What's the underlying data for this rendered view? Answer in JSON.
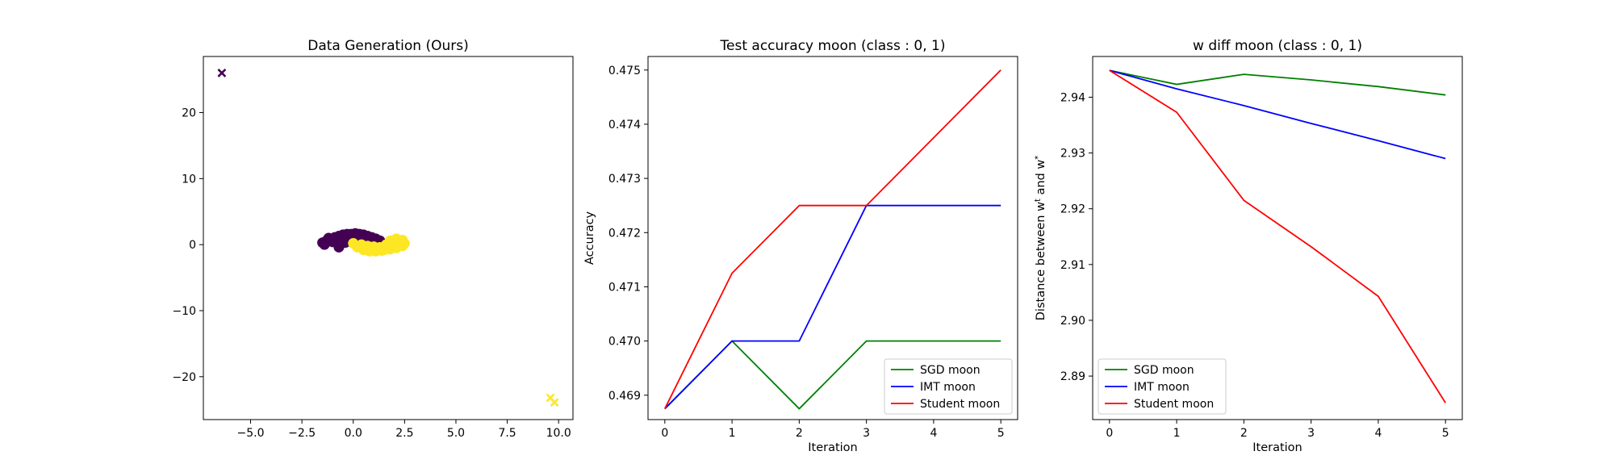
{
  "chart_data": [
    {
      "type": "scatter",
      "title": "Data Generation (Ours)",
      "xlabel": "",
      "ylabel": "",
      "xlim": [
        -7.3,
        10.7
      ],
      "ylim": [
        -26.5,
        28.5
      ],
      "xticks": [
        -5.0,
        -2.5,
        0.0,
        2.5,
        5.0,
        7.5,
        10.0
      ],
      "xtick_labels": [
        "−5.0",
        "−2.5",
        "0.0",
        "2.5",
        "5.0",
        "7.5",
        "10.0"
      ],
      "yticks": [
        -20,
        -10,
        0,
        10,
        20
      ],
      "ytick_labels": [
        "−20",
        "−10",
        "0",
        "10",
        "20"
      ],
      "classes": [
        {
          "class": 0,
          "color": "#440154",
          "points": [
            [
              -1.5,
              0.3
            ],
            [
              -1.3,
              0.6
            ],
            [
              -1.1,
              0.9
            ],
            [
              -0.9,
              1.1
            ],
            [
              -0.7,
              1.3
            ],
            [
              -0.5,
              1.5
            ],
            [
              -0.3,
              1.6
            ],
            [
              -0.1,
              1.6
            ],
            [
              0.1,
              1.7
            ],
            [
              0.3,
              1.6
            ],
            [
              0.5,
              1.5
            ],
            [
              0.7,
              1.3
            ],
            [
              0.9,
              1.1
            ],
            [
              1.1,
              0.9
            ],
            [
              1.3,
              0.6
            ],
            [
              -1.4,
              0.0
            ],
            [
              -1.0,
              0.4
            ],
            [
              -0.8,
              0.8
            ],
            [
              -0.6,
              0.9
            ],
            [
              -0.3,
              1.1
            ],
            [
              0.0,
              1.2
            ],
            [
              0.3,
              1.2
            ],
            [
              0.6,
              1.0
            ],
            [
              0.9,
              0.7
            ],
            [
              1.2,
              0.4
            ],
            [
              -0.7,
              -0.4
            ],
            [
              -0.4,
              0.3
            ],
            [
              0.0,
              0.7
            ],
            [
              0.4,
              0.8
            ],
            [
              -1.2,
              1.0
            ],
            [
              -0.2,
              0.5
            ],
            [
              0.8,
              0.5
            ]
          ],
          "markers": [
            [
              -6.4,
              26.0
            ]
          ]
        },
        {
          "class": 1,
          "color": "#fde725",
          "points": [
            [
              0.0,
              0.2
            ],
            [
              0.3,
              -0.2
            ],
            [
              0.6,
              -0.5
            ],
            [
              0.9,
              -0.7
            ],
            [
              1.2,
              -0.8
            ],
            [
              1.5,
              -0.8
            ],
            [
              1.8,
              -0.7
            ],
            [
              2.1,
              -0.5
            ],
            [
              2.4,
              -0.2
            ],
            [
              2.5,
              0.2
            ],
            [
              0.2,
              -0.4
            ],
            [
              0.5,
              -0.8
            ],
            [
              0.8,
              -1.0
            ],
            [
              1.1,
              -1.0
            ],
            [
              1.4,
              -0.9
            ],
            [
              1.7,
              -0.6
            ],
            [
              2.0,
              -0.2
            ],
            [
              2.2,
              0.3
            ],
            [
              1.8,
              0.6
            ],
            [
              2.1,
              0.9
            ],
            [
              2.3,
              0.6
            ],
            [
              1.6,
              0.0
            ],
            [
              1.0,
              -0.3
            ],
            [
              0.7,
              -0.2
            ],
            [
              1.9,
              0.2
            ],
            [
              1.3,
              -0.4
            ],
            [
              2.4,
              0.7
            ],
            [
              0.4,
              0.0
            ]
          ],
          "markers": [
            [
              9.6,
              -23.2
            ],
            [
              9.8,
              -23.9
            ]
          ]
        }
      ]
    },
    {
      "type": "line",
      "title": "Test accuracy moon (class : 0, 1)",
      "xlabel": "Iteration",
      "ylabel": "Accuracy",
      "x": [
        0,
        1,
        2,
        3,
        4,
        5
      ],
      "xlim": [
        -0.25,
        5.25
      ],
      "ylim": [
        0.46855,
        0.47525
      ],
      "xticks": [
        0,
        1,
        2,
        3,
        4,
        5
      ],
      "xtick_labels": [
        "0",
        "1",
        "2",
        "3",
        "4",
        "5"
      ],
      "yticks": [
        0.469,
        0.47,
        0.471,
        0.472,
        0.473,
        0.474,
        0.475
      ],
      "ytick_labels": [
        "0.469",
        "0.470",
        "0.471",
        "0.472",
        "0.473",
        "0.474",
        "0.475"
      ],
      "legend_position": "lower-right",
      "series": [
        {
          "name": "SGD moon",
          "color": "#008000",
          "values": [
            0.46875,
            0.47,
            0.46875,
            0.47,
            0.47,
            0.47
          ]
        },
        {
          "name": "IMT moon",
          "color": "#0000ff",
          "values": [
            0.46875,
            0.47,
            0.47,
            0.4725,
            0.4725,
            0.4725
          ]
        },
        {
          "name": "Student moon",
          "color": "#ff0000",
          "values": [
            0.46875,
            0.47125,
            0.4725,
            0.4725,
            0.47375,
            0.475
          ]
        }
      ]
    },
    {
      "type": "line",
      "title": "w diff moon (class : 0, 1)",
      "xlabel": "Iteration",
      "ylabel": "Distance between w",
      "ylabel_sup1": "t",
      "ylabel_mid": " and w",
      "ylabel_sup2": "*",
      "x": [
        0,
        1,
        2,
        3,
        4,
        5
      ],
      "xlim": [
        -0.25,
        5.25
      ],
      "ylim": [
        2.8822,
        2.9473
      ],
      "xticks": [
        0,
        1,
        2,
        3,
        4,
        5
      ],
      "xtick_labels": [
        "0",
        "1",
        "2",
        "3",
        "4",
        "5"
      ],
      "yticks": [
        2.89,
        2.9,
        2.91,
        2.92,
        2.93,
        2.94
      ],
      "ytick_labels": [
        "2.89",
        "2.90",
        "2.91",
        "2.92",
        "2.93",
        "2.94"
      ],
      "legend_position": "lower-left",
      "series": [
        {
          "name": "SGD moon",
          "color": "#008000",
          "values": [
            2.9448,
            2.9423,
            2.9441,
            2.9431,
            2.9419,
            2.9404
          ]
        },
        {
          "name": "IMT moon",
          "color": "#0000ff",
          "values": [
            2.9448,
            2.9415,
            2.9385,
            2.9353,
            2.9322,
            2.929
          ]
        },
        {
          "name": "Student moon",
          "color": "#ff0000",
          "values": [
            2.9448,
            2.9373,
            2.9215,
            2.9132,
            2.9043,
            2.8852
          ]
        }
      ]
    }
  ]
}
